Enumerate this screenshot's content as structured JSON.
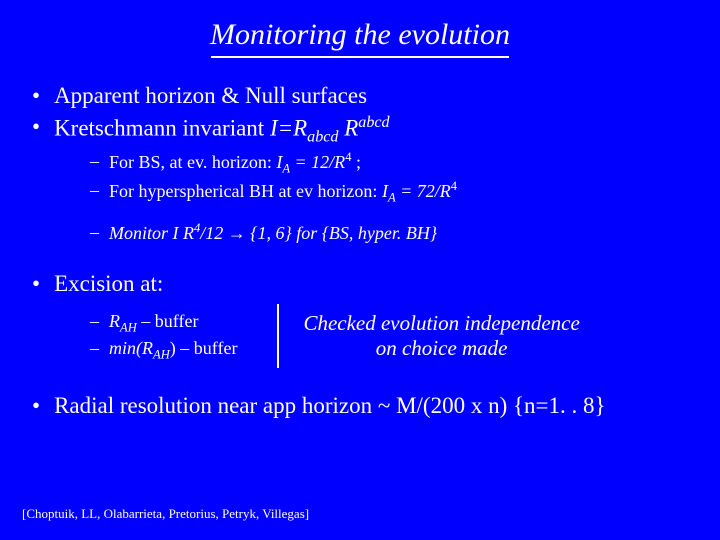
{
  "colors": {
    "background": "#0000ff",
    "text": "#ffffff",
    "underline": "#ffffff"
  },
  "title": "Monitoring the evolution",
  "bullets": {
    "b1": "Apparent horizon & Null surfaces",
    "b2_pre": "Kretschmann invariant ",
    "b2_eq_I": "I=R",
    "b2_sub": "abcd",
    "b2_sp": " R",
    "b2_sup": "abcd",
    "s1_pre": "For BS, at ev. horizon: ",
    "s1_IA": "I",
    "s1_A": "A",
    "s1_mid": " = 12/R",
    "s1_exp": "4",
    "s1_post": " ;",
    "s2_pre": "For hyperspherical BH at ev horizon: ",
    "s2_IA": "I",
    "s2_A": "A",
    "s2_mid": " = 72/R",
    "s2_exp": "4",
    "s3_pre": "Monitor I R",
    "s3_exp": "4",
    "s3_post": "/12 → {1, 6} for {BS, hyper. BH}",
    "exc_label": "Excision at:",
    "exc1_pre": "R",
    "exc1_sub": "AH",
    "exc1_post": " – buffer",
    "exc2_pre": "min(R",
    "exc2_sub": "AH",
    "exc2_post": ") – buffer",
    "exc_note_l1": "Checked evolution independence",
    "exc_note_l2": "on choice made",
    "res_pre": "Radial resolution near app horizon ~ M/(200 x n) {n=1. . 8}"
  },
  "citation": "[Choptuik, LL, Olabarrieta, Pretorius, Petryk, Villegas]"
}
